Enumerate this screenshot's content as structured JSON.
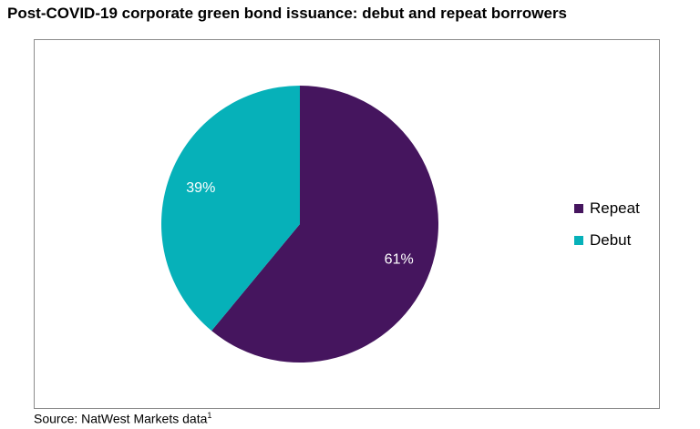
{
  "title": "Post-COVID-19 corporate green bond issuance: debut and repeat borrowers",
  "source": {
    "text": "Source: NatWest Markets data",
    "footnote": "1"
  },
  "chart_data": {
    "type": "pie",
    "slices": [
      {
        "label": "Repeat",
        "value": 61,
        "display": "61%",
        "color": "#45155e"
      },
      {
        "label": "Debut",
        "value": 39,
        "display": "39%",
        "color": "#06b1b9"
      }
    ],
    "legend_position": "right"
  }
}
